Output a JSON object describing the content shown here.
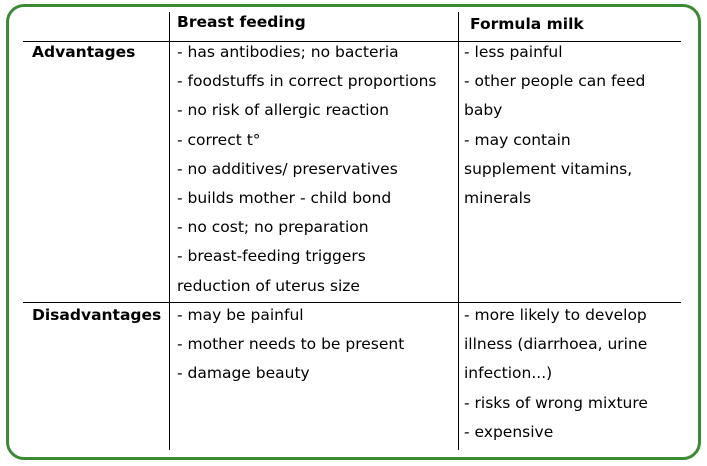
{
  "table": {
    "headers": {
      "corner": "",
      "breast_feeding": "Breast feeding",
      "formula_milk": "Formula milk"
    },
    "rows": [
      {
        "label": "Advantages",
        "breast_feeding": [
          "- has antibodies; no bacteria",
          "- foodstuffs in correct proportions",
          "- no risk of allergic reaction",
          "- correct t°",
          "- no additives/ preservatives",
          "- builds mother - child bond",
          "- no cost; no preparation",
          "- breast-feeding triggers",
          "reduction of uterus size"
        ],
        "formula_milk": [
          "- less painful",
          "- other people can feed",
          "baby",
          "- may contain",
          "supplement vitamins,",
          "minerals"
        ]
      },
      {
        "label": "Disadvantages",
        "breast_feeding": [
          "- may be painful",
          "- mother needs to be present",
          "- damage beauty"
        ],
        "formula_milk": [
          "- more likely to develop",
          "illness (diarrhoea, urine",
          "infection...)",
          "- risks of wrong mixture",
          "- expensive"
        ]
      }
    ]
  },
  "colors": {
    "border": "#3b8a34",
    "lines": "#000000"
  }
}
